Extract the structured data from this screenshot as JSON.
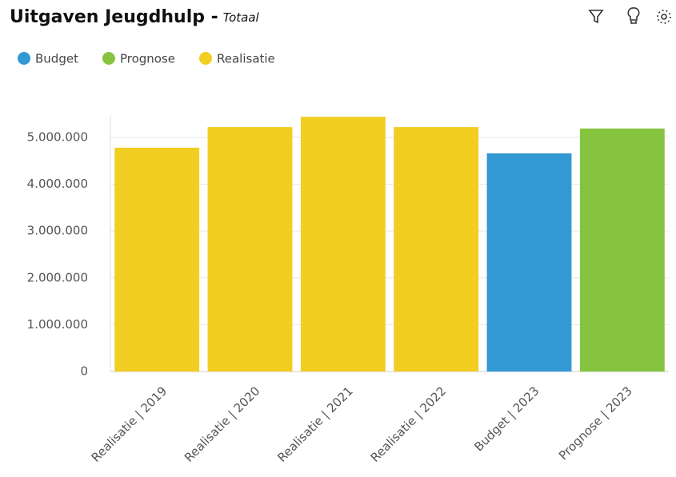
{
  "chart_data": {
    "type": "bar",
    "title": "Uitgaven Jeugdhulp -",
    "subtitle": "Totaal",
    "categories": [
      "Realisatie | 2019",
      "Realisatie | 2020",
      "Realisatie | 2021",
      "Realisatie | 2022",
      "Budget | 2023",
      "Prognose | 2023"
    ],
    "series": [
      {
        "name": "Budget",
        "color": "#3399d4",
        "values": [
          null,
          null,
          null,
          null,
          4660000,
          null
        ]
      },
      {
        "name": "Prognose",
        "color": "#86c440",
        "values": [
          null,
          null,
          null,
          null,
          null,
          5190000
        ]
      },
      {
        "name": "Realisatie",
        "color": "#f2cd22",
        "values": [
          4780000,
          5220000,
          5440000,
          5220000,
          null,
          null
        ]
      }
    ],
    "ylim": [
      0,
      5460000
    ],
    "yticks": [
      0,
      {
        "value": 1000000,
        "label": "1.000.000"
      },
      {
        "value": 2000000,
        "label": "2.000.000"
      },
      {
        "value": 3000000,
        "label": "3.000.000"
      },
      {
        "value": 4000000,
        "label": "4.000.000"
      },
      {
        "value": 5000000,
        "label": "5.000.000"
      }
    ],
    "grid": true
  }
}
